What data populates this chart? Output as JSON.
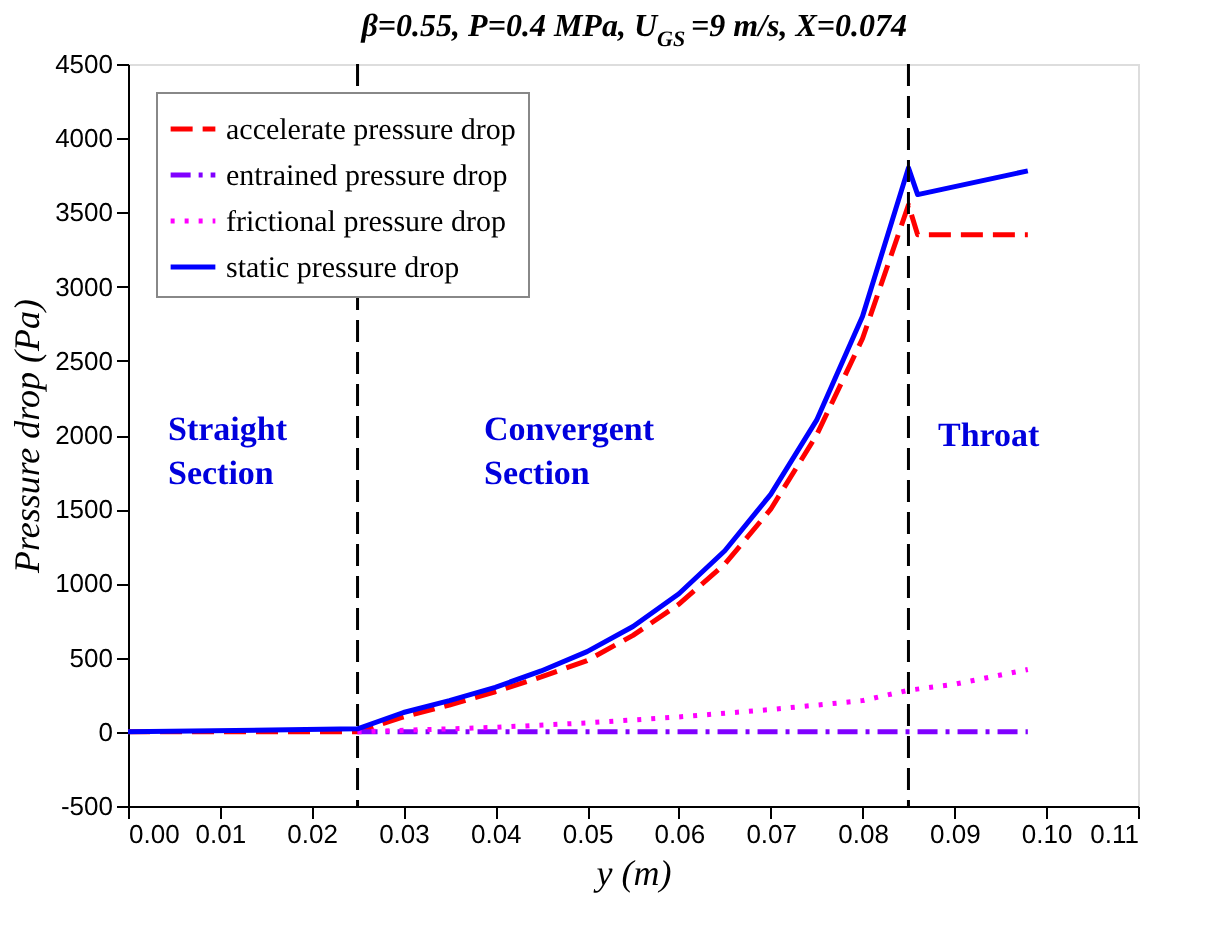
{
  "chart_data": {
    "type": "line",
    "title": "β=0.55, P=0.4 MPa, U$_{GS}$=9 m/s, X=0.074",
    "xlabel": "y (m)",
    "ylabel": "Pressure drop (Pa)",
    "xlim": [
      0,
      0.11
    ],
    "xticks": [
      {
        "value": 0,
        "label": "0.00"
      },
      {
        "value": 0.01,
        "label": "0.01"
      },
      {
        "value": 0.02,
        "label": "0.02"
      },
      {
        "value": 0.03,
        "label": "0.03"
      },
      {
        "value": 0.04,
        "label": "0.04"
      },
      {
        "value": 0.05,
        "label": "0.05"
      },
      {
        "value": 0.06,
        "label": "0.06"
      },
      {
        "value": 0.07,
        "label": "0.07"
      },
      {
        "value": 0.08,
        "label": "0.08"
      },
      {
        "value": 0.09,
        "label": "0.09"
      },
      {
        "value": 0.1,
        "label": "0.10"
      },
      {
        "value": 0.11,
        "label": "0.11"
      }
    ],
    "ylim": [
      -500,
      4500
    ],
    "yticks": [
      -500,
      0,
      500,
      1000,
      1500,
      2000,
      2500,
      3000,
      3500,
      4000,
      4500
    ],
    "grid": false,
    "legend": "top left",
    "series": [
      {
        "name": "accelerate pressure drop",
        "color": "#ff0000",
        "line_style": "dashed",
        "x": [
          0,
          0.025,
          0.03,
          0.035,
          0.04,
          0.045,
          0.05,
          0.055,
          0.06,
          0.065,
          0.07,
          0.075,
          0.08,
          0.085,
          0.086,
          0.098
        ],
        "values": [
          0,
          0,
          100,
          180,
          270,
          370,
          480,
          650,
          860,
          1130,
          1500,
          2000,
          2650,
          3550,
          3350,
          3350
        ]
      },
      {
        "name": "entrained pressure drop",
        "color": "#8000ff",
        "line_style": "dashdot",
        "x": [
          0.025,
          0.098
        ],
        "values": [
          0,
          0
        ]
      },
      {
        "name": "frictional pressure drop",
        "color": "#ff00ff",
        "line_style": "dotted",
        "x": [
          0.025,
          0.04,
          0.05,
          0.06,
          0.07,
          0.08,
          0.085,
          0.09,
          0.098
        ],
        "values": [
          0,
          30,
          60,
          100,
          150,
          210,
          280,
          320,
          420
        ]
      },
      {
        "name": "static pressure drop",
        "color": "#0000ff",
        "line_style": "solid",
        "x": [
          0,
          0.025,
          0.03,
          0.035,
          0.04,
          0.045,
          0.05,
          0.055,
          0.06,
          0.065,
          0.07,
          0.075,
          0.08,
          0.085,
          0.086,
          0.098
        ],
        "values": [
          0,
          20,
          130,
          210,
          300,
          410,
          540,
          710,
          930,
          1220,
          1600,
          2100,
          2800,
          3800,
          3620,
          3780
        ]
      }
    ],
    "ref_lines": [
      {
        "axis": "x",
        "value": 0.025,
        "color": "#000000",
        "line_style": "dashed"
      },
      {
        "axis": "x",
        "value": 0.085,
        "color": "#000000",
        "line_style": "dashed"
      }
    ],
    "annotations": [
      "Straight Section",
      "Convergent Section",
      "Throat"
    ]
  }
}
